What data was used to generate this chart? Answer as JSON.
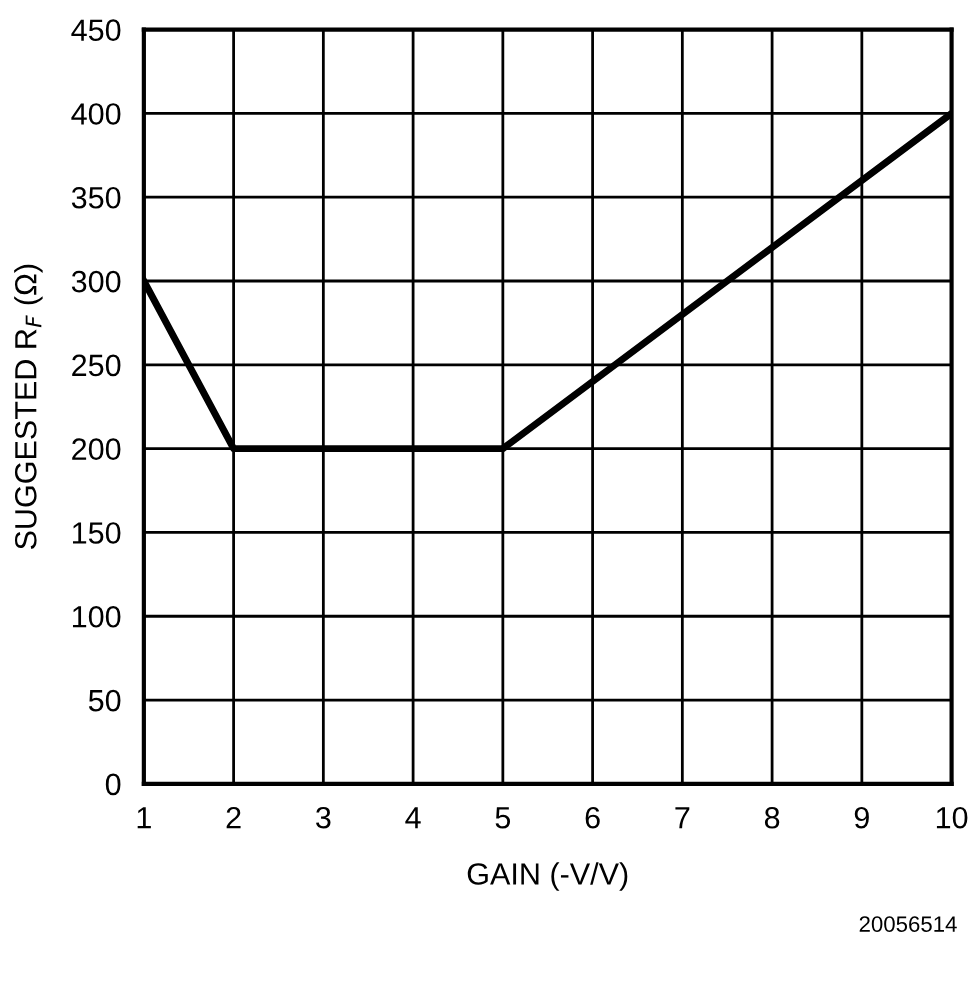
{
  "chart_data": {
    "type": "line",
    "xlabel": "GAIN (-V/V)",
    "ylabel": "SUGGESTED R$_{F}$ (Ω)",
    "x": [
      1,
      2,
      5,
      10
    ],
    "series": [
      {
        "color": "#000000",
        "values": [
          300,
          200,
          200,
          400
        ]
      }
    ],
    "xlim": [
      1,
      10
    ],
    "xticks": [
      1,
      2,
      3,
      4,
      5,
      6,
      7,
      8,
      9,
      10
    ],
    "ylim": [
      0,
      450
    ],
    "yticks": [
      0,
      50,
      100,
      150,
      200,
      250,
      300,
      350,
      400,
      450
    ],
    "grid": true,
    "marker": "none",
    "line_style": "solid",
    "annotations": [
      "20056514"
    ]
  }
}
